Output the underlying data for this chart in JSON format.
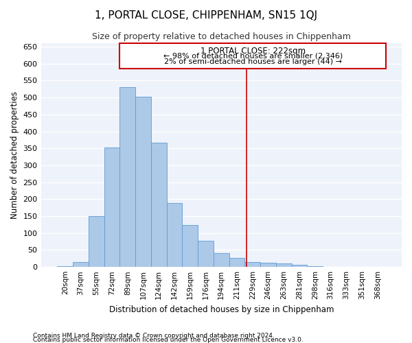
{
  "title": "1, PORTAL CLOSE, CHIPPENHAM, SN15 1QJ",
  "subtitle": "Size of property relative to detached houses in Chippenham",
  "xlabel": "Distribution of detached houses by size in Chippenham",
  "ylabel": "Number of detached properties",
  "categories": [
    "20sqm",
    "37sqm",
    "55sqm",
    "72sqm",
    "89sqm",
    "107sqm",
    "124sqm",
    "142sqm",
    "159sqm",
    "176sqm",
    "194sqm",
    "211sqm",
    "229sqm",
    "246sqm",
    "263sqm",
    "281sqm",
    "298sqm",
    "316sqm",
    "333sqm",
    "351sqm",
    "368sqm"
  ],
  "values": [
    2,
    15,
    150,
    353,
    530,
    503,
    367,
    188,
    123,
    77,
    40,
    27,
    15,
    12,
    11,
    7,
    3,
    1,
    1,
    0,
    0
  ],
  "bar_color": "#adc9e8",
  "bar_edge_color": "#5b9bd5",
  "line_color": "#cc0000",
  "annotation_title": "1 PORTAL CLOSE: 222sqm",
  "annotation_line1": "← 98% of detached houses are smaller (2,346)",
  "annotation_line2": "2% of semi-detached houses are larger (44) →",
  "ylim": [
    0,
    660
  ],
  "yticks": [
    0,
    50,
    100,
    150,
    200,
    250,
    300,
    350,
    400,
    450,
    500,
    550,
    600,
    650
  ],
  "background_color": "#eef2fa",
  "grid_color": "#ffffff",
  "title_fontsize": 11,
  "subtitle_fontsize": 9,
  "axis_label_fontsize": 8.5,
  "tick_fontsize": 7.5,
  "annotation_fontsize": 8.5,
  "footer_fontsize": 6.5,
  "footer_line1": "Contains HM Land Registry data © Crown copyright and database right 2024.",
  "footer_line2": "Contains public sector information licensed under the Open Government Licence v3.0."
}
